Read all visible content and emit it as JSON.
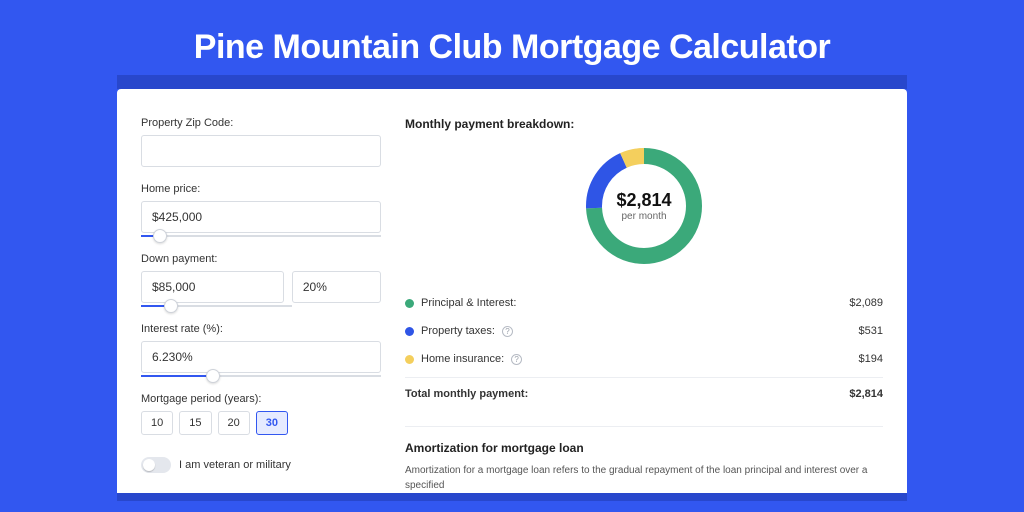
{
  "page": {
    "title": "Pine Mountain Club Mortgage Calculator",
    "background_color": "#3257f0",
    "card_background": "#ffffff"
  },
  "form": {
    "zip": {
      "label": "Property Zip Code:",
      "value": ""
    },
    "price": {
      "label": "Home price:",
      "value": "$425,000",
      "slider_pct": 8
    },
    "down": {
      "label": "Down payment:",
      "value": "$85,000",
      "pct_value": "20%",
      "slider_pct": 20
    },
    "rate": {
      "label": "Interest rate (%):",
      "value": "6.230%",
      "slider_pct": 30
    },
    "period": {
      "label": "Mortgage period (years):",
      "options": [
        "10",
        "15",
        "20",
        "30"
      ],
      "active_index": 3
    },
    "veteran": {
      "label": "I am veteran or military",
      "checked": false
    }
  },
  "breakdown": {
    "title": "Monthly payment breakdown:",
    "center_value": "$2,814",
    "center_sub": "per month",
    "donut": {
      "radius": 50,
      "stroke_width": 16,
      "track_color": "#f1f2f4",
      "segments": [
        {
          "label": "Principal & Interest:",
          "value": "$2,089",
          "color": "#3ba97a",
          "fraction": 0.742,
          "has_info": false
        },
        {
          "label": "Property taxes:",
          "value": "$531",
          "color": "#2f55e6",
          "fraction": 0.189,
          "has_info": true
        },
        {
          "label": "Home insurance:",
          "value": "$194",
          "color": "#f4cf5d",
          "fraction": 0.069,
          "has_info": true
        }
      ]
    },
    "total": {
      "label": "Total monthly payment:",
      "value": "$2,814"
    }
  },
  "amortization": {
    "title": "Amortization for mortgage loan",
    "body": "Amortization for a mortgage loan refers to the gradual repayment of the loan principal and interest over a specified"
  }
}
